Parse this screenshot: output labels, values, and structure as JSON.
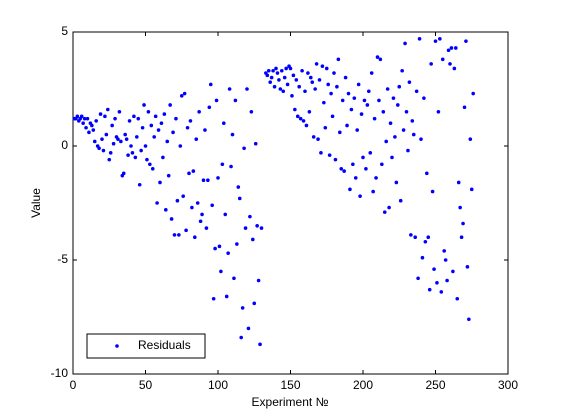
{
  "chart_data": {
    "type": "scatter",
    "xlabel": "Experiment №",
    "ylabel": "Value",
    "xlim": [
      0,
      300
    ],
    "ylim": [
      -10,
      5
    ],
    "xticks": [
      0,
      50,
      100,
      150,
      200,
      250,
      300
    ],
    "yticks": [
      -10,
      -5,
      0,
      5
    ],
    "grid": false,
    "legend_position": "lower left",
    "x": [
      1,
      2,
      3,
      4,
      5,
      6,
      7,
      8,
      9,
      10,
      11,
      12,
      13,
      14,
      15,
      16,
      17,
      18,
      19,
      20,
      21,
      22,
      23,
      24,
      25,
      26,
      27,
      28,
      29,
      30,
      31,
      32,
      33,
      34,
      35,
      36,
      37,
      38,
      39,
      40,
      41,
      42,
      43,
      44,
      45,
      46,
      47,
      48,
      49,
      50,
      51,
      52,
      53,
      54,
      55,
      56,
      57,
      58,
      59,
      60,
      61,
      62,
      63,
      64,
      65,
      66,
      67,
      68,
      69,
      70,
      71,
      72,
      73,
      74,
      75,
      76,
      77,
      78,
      79,
      80,
      81,
      82,
      83,
      84,
      85,
      86,
      87,
      88,
      89,
      90,
      91,
      92,
      93,
      94,
      95,
      96,
      97,
      98,
      99,
      100,
      101,
      102,
      103,
      104,
      105,
      106,
      107,
      108,
      109,
      110,
      111,
      112,
      113,
      114,
      115,
      116,
      117,
      118,
      119,
      120,
      121,
      122,
      123,
      124,
      125,
      126,
      127,
      128,
      129,
      130,
      133,
      134,
      135,
      136,
      137,
      138,
      139,
      140,
      141,
      142,
      143,
      144,
      145,
      146,
      147,
      148,
      149,
      150,
      151,
      152,
      153,
      154,
      155,
      156,
      157,
      158,
      159,
      160,
      161,
      162,
      163,
      164,
      165,
      166,
      167,
      168,
      169,
      170,
      171,
      172,
      173,
      174,
      175,
      176,
      177,
      178,
      179,
      180,
      181,
      182,
      183,
      184,
      185,
      186,
      187,
      188,
      189,
      190,
      191,
      192,
      193,
      194,
      195,
      196,
      197,
      198,
      199,
      200,
      201,
      202,
      203,
      204,
      205,
      206,
      207,
      208,
      209,
      210,
      211,
      212,
      213,
      214,
      215,
      216,
      217,
      218,
      219,
      220,
      221,
      222,
      223,
      224,
      225,
      226,
      227,
      228,
      229,
      230,
      231,
      232,
      233,
      234,
      235,
      236,
      237,
      238,
      239,
      240,
      241,
      242,
      243,
      244,
      245,
      246,
      247,
      248,
      249,
      250,
      251,
      252,
      253,
      254,
      255,
      256,
      257,
      258,
      259,
      260,
      261,
      262,
      263,
      264,
      265,
      266,
      267,
      268,
      269,
      270,
      271,
      272,
      273,
      274,
      275,
      276
    ],
    "series": [
      {
        "name": "Residuals",
        "color": "#0000ff",
        "values": [
          1.2,
          1.2,
          1.3,
          1.1,
          1.2,
          1.3,
          1.0,
          1.2,
          0.8,
          1.2,
          0.6,
          1.0,
          0.9,
          0.7,
          0.2,
          1.1,
          0.0,
          -0.1,
          1.4,
          0.3,
          -0.2,
          1.3,
          0.5,
          1.6,
          -0.6,
          -0.3,
          0.9,
          0.1,
          1.2,
          0.4,
          0.3,
          1.5,
          0.2,
          -1.3,
          -1.2,
          0.5,
          0.3,
          -0.4,
          1.1,
          0.0,
          -0.3,
          1.3,
          -0.5,
          0.4,
          1.2,
          -1.7,
          -0.2,
          0.8,
          1.8,
          0.0,
          -0.6,
          1.5,
          -0.8,
          0.9,
          -1.0,
          0.4,
          1.3,
          -2.5,
          0.7,
          -1.6,
          1.0,
          -0.5,
          1.4,
          -2.8,
          0.2,
          -1.3,
          1.8,
          -3.2,
          0.6,
          -3.9,
          1.2,
          -2.4,
          -3.9,
          0.0,
          2.2,
          -2.2,
          2.3,
          -3.7,
          0.8,
          -1.2,
          1.1,
          -2.7,
          -1.1,
          -4.0,
          0.3,
          -2.5,
          1.5,
          -3.3,
          -3.0,
          -1.5,
          0.7,
          -3.6,
          -1.5,
          1.7,
          2.7,
          -2.6,
          -6.7,
          -4.5,
          2.0,
          -1.4,
          -4.4,
          -5.5,
          -0.8,
          1.0,
          -3.0,
          -6.6,
          -4.7,
          2.5,
          -0.9,
          0.5,
          -5.8,
          2.0,
          -4.3,
          -1.8,
          -2.3,
          -8.4,
          -7.1,
          -0.1,
          -3.6,
          2.5,
          -8.0,
          -3.1,
          1.5,
          -4.1,
          -6.9,
          0.1,
          -3.5,
          -5.9,
          -8.7,
          -3.6,
          3.2,
          3.1,
          3.3,
          2.8,
          3.0,
          3.3,
          2.6,
          3.4,
          3.2,
          2.9,
          2.5,
          3.3,
          2.4,
          3.0,
          3.4,
          2.7,
          3.5,
          3.4,
          2.2,
          3.1,
          1.6,
          2.9,
          1.3,
          2.6,
          1.2,
          3.3,
          1.1,
          2.4,
          0.9,
          3.2,
          1.5,
          3.0,
          2.8,
          0.4,
          2.5,
          3.6,
          0.3,
          2.9,
          -0.3,
          3.5,
          1.9,
          0.8,
          3.4,
          2.7,
          -0.4,
          2.3,
          1.3,
          3.2,
          -0.6,
          2.6,
          3.8,
          0.6,
          -1.0,
          2.0,
          -1.1,
          3.0,
          0.9,
          2.3,
          -1.9,
          1.6,
          -0.8,
          2.1,
          -1.4,
          0.7,
          2.7,
          -2.2,
          1.4,
          -0.5,
          2.0,
          -1.0,
          1.8,
          2.4,
          -0.3,
          3.2,
          -2.0,
          1.2,
          -1.4,
          3.9,
          2.0,
          3.8,
          -0.8,
          1.5,
          -2.9,
          0.2,
          2.5,
          -2.7,
          1.0,
          -0.5,
          2.1,
          0.4,
          -1.6,
          1.8,
          2.6,
          -2.4,
          3.3,
          0.7,
          4.5,
          1.5,
          -0.2,
          2.8,
          -3.9,
          1.1,
          0.5,
          -4.0,
          2.4,
          -5.8,
          4.7,
          0.3,
          -4.9,
          2.1,
          -4.2,
          -1.2,
          -4.0,
          -6.3,
          3.6,
          -2.0,
          -5.4,
          4.6,
          -6.0,
          1.5,
          4.7,
          -6.4,
          3.8,
          -4.6,
          -5.0,
          -5.9,
          4.2,
          3.6,
          4.3,
          -5.5,
          3.4,
          4.3,
          -6.7,
          -1.6,
          -2.7,
          -4.0,
          -3.4,
          1.7,
          4.6,
          -5.3,
          -7.6,
          0.3,
          -1.9,
          2.3
        ]
      }
    ]
  }
}
